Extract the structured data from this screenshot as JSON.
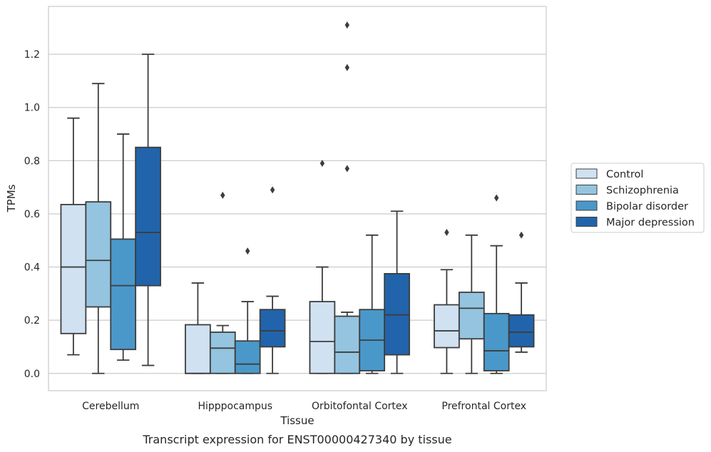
{
  "chart_data": {
    "type": "box",
    "xlabel": "Tissue",
    "ylabel": "TPMs",
    "caption": "Transcript expression for ENST00000427340 by tissue",
    "categories": [
      "Cerebellum",
      "Hipppocampus",
      "Orbitofontal Cortex",
      "Prefrontal Cortex"
    ],
    "ylim": [
      -0.065,
      1.38
    ],
    "yticks": [
      0.0,
      0.2,
      0.4,
      0.6,
      0.8,
      1.0,
      1.2
    ],
    "ytick_labels": [
      "0.0",
      "0.2",
      "0.4",
      "0.6",
      "0.8",
      "1.0",
      "1.2"
    ],
    "grid": "horizontal",
    "legend_position": "right",
    "series": [
      {
        "name": "Control",
        "color": "#d0e1f2",
        "boxes": [
          {
            "whislo": 0.07,
            "q1": 0.15,
            "med": 0.4,
            "q3": 0.635,
            "whishi": 0.96,
            "fliers": []
          },
          {
            "whislo": 0.0,
            "q1": 0.0,
            "med": 0.0,
            "q3": 0.183,
            "whishi": 0.34,
            "fliers": []
          },
          {
            "whislo": 0.0,
            "q1": 0.0,
            "med": 0.12,
            "q3": 0.27,
            "whishi": 0.4,
            "fliers": [
              0.79
            ]
          },
          {
            "whislo": 0.0,
            "q1": 0.097,
            "med": 0.16,
            "q3": 0.258,
            "whishi": 0.39,
            "fliers": [
              0.53
            ]
          }
        ]
      },
      {
        "name": "Schizophrenia",
        "color": "#94c4df",
        "boxes": [
          {
            "whislo": 0.0,
            "q1": 0.25,
            "med": 0.425,
            "q3": 0.645,
            "whishi": 1.09,
            "fliers": []
          },
          {
            "whislo": 0.0,
            "q1": 0.0,
            "med": 0.095,
            "q3": 0.155,
            "whishi": 0.18,
            "fliers": [
              0.67
            ]
          },
          {
            "whislo": 0.0,
            "q1": 0.0,
            "med": 0.08,
            "q3": 0.215,
            "whishi": 0.23,
            "fliers": [
              0.77,
              1.15,
              1.31
            ]
          },
          {
            "whislo": 0.0,
            "q1": 0.13,
            "med": 0.245,
            "q3": 0.305,
            "whishi": 0.52,
            "fliers": []
          }
        ]
      },
      {
        "name": "Bipolar disorder",
        "color": "#4a98c9",
        "boxes": [
          {
            "whislo": 0.05,
            "q1": 0.09,
            "med": 0.33,
            "q3": 0.505,
            "whishi": 0.9,
            "fliers": []
          },
          {
            "whislo": 0.0,
            "q1": 0.0,
            "med": 0.035,
            "q3": 0.122,
            "whishi": 0.27,
            "fliers": [
              0.46
            ]
          },
          {
            "whislo": 0.0,
            "q1": 0.01,
            "med": 0.125,
            "q3": 0.24,
            "whishi": 0.52,
            "fliers": []
          },
          {
            "whislo": 0.0,
            "q1": 0.01,
            "med": 0.085,
            "q3": 0.225,
            "whishi": 0.48,
            "fliers": [
              0.66
            ]
          }
        ]
      },
      {
        "name": "Major depression",
        "color": "#2164ab",
        "boxes": [
          {
            "whislo": 0.03,
            "q1": 0.33,
            "med": 0.53,
            "q3": 0.85,
            "whishi": 1.2,
            "fliers": []
          },
          {
            "whislo": 0.0,
            "q1": 0.1,
            "med": 0.16,
            "q3": 0.24,
            "whishi": 0.29,
            "fliers": [
              0.69
            ]
          },
          {
            "whislo": 0.0,
            "q1": 0.07,
            "med": 0.22,
            "q3": 0.375,
            "whishi": 0.61,
            "fliers": []
          },
          {
            "whislo": 0.08,
            "q1": 0.1,
            "med": 0.155,
            "q3": 0.22,
            "whishi": 0.34,
            "fliers": [
              0.52
            ]
          }
        ]
      }
    ]
  }
}
